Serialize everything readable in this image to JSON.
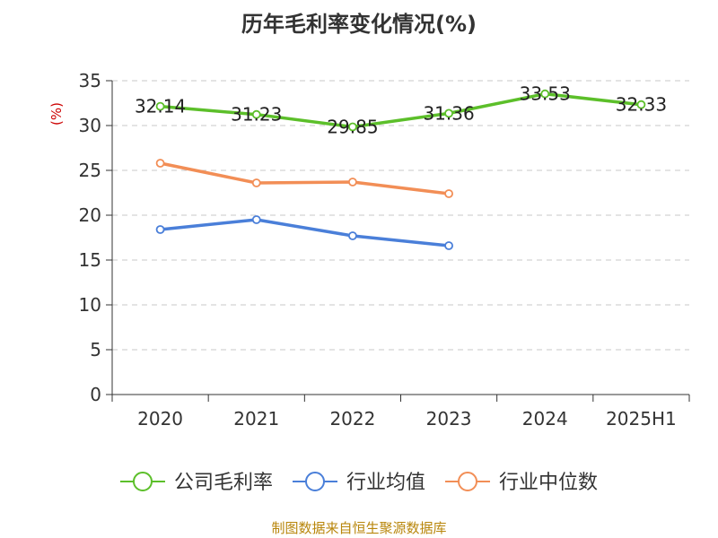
{
  "chart_data": {
    "type": "line",
    "title": "历年毛利率变化情况(%)",
    "ylabel": "(%)",
    "categories": [
      "2020",
      "2021",
      "2022",
      "2023",
      "2024",
      "2025H1"
    ],
    "yticks": [
      "0",
      "5",
      "10",
      "15",
      "20",
      "25",
      "30",
      "35"
    ],
    "ylim": [
      0,
      35
    ],
    "grid": true,
    "legend_position": "bottom",
    "series": [
      {
        "name": "公司毛利率",
        "color": "#5cbf2a",
        "values": [
          32.14,
          31.23,
          29.85,
          31.36,
          33.53,
          32.33
        ],
        "labels": [
          "32.14",
          "31.23",
          "29.85",
          "31.36",
          "33.53",
          "32.33"
        ]
      },
      {
        "name": "行业均值",
        "color": "#4a7fd9",
        "values": [
          18.4,
          19.5,
          17.7,
          16.6,
          null,
          null
        ]
      },
      {
        "name": "行业中位数",
        "color": "#f28e56",
        "values": [
          25.8,
          23.6,
          23.7,
          22.4,
          null,
          null
        ]
      }
    ]
  },
  "source": "制图数据来自恒生聚源数据库"
}
